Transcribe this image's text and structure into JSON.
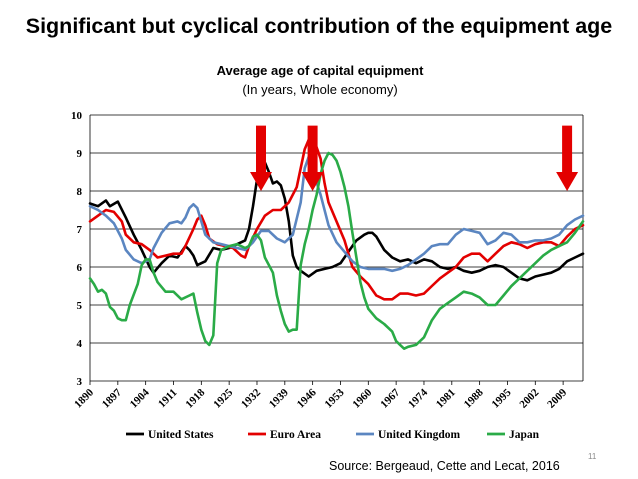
{
  "slide": {
    "title": "Significant but cyclical contribution  of the equipment age",
    "source": "Source: Bergeaud, Cette and Lecat, 2016",
    "page_number": "11"
  },
  "chart_data": {
    "type": "line",
    "title": "Average age of capital equipment",
    "subtitle": "(In years,  Whole economy)",
    "xlabel": "",
    "ylabel": "",
    "xlim": [
      1890,
      2014
    ],
    "ylim": [
      3,
      10
    ],
    "y_ticks": [
      "3",
      "4",
      "5",
      "6",
      "7",
      "8",
      "9",
      "10"
    ],
    "x_ticks": [
      "1890",
      "1897",
      "1904",
      "1911",
      "1918",
      "1925",
      "1932",
      "1939",
      "1946",
      "1953",
      "1960",
      "1967",
      "1974",
      "1981",
      "1988",
      "1995",
      "2002",
      "2009"
    ],
    "grid": "horizontal",
    "legend_position": "bottom",
    "arrow_markers": [
      1933,
      1946,
      2010
    ],
    "arrow_color": "#e30000",
    "series": [
      {
        "name": "United States",
        "color": "#000000",
        "points": [
          [
            1890,
            7.67
          ],
          [
            1892,
            7.6
          ],
          [
            1894,
            7.75
          ],
          [
            1895,
            7.6
          ],
          [
            1897,
            7.72
          ],
          [
            1899,
            7.3
          ],
          [
            1901,
            6.85
          ],
          [
            1903,
            6.45
          ],
          [
            1905,
            6.0
          ],
          [
            1906,
            5.85
          ],
          [
            1908,
            6.1
          ],
          [
            1910,
            6.3
          ],
          [
            1912,
            6.25
          ],
          [
            1914,
            6.55
          ],
          [
            1915,
            6.45
          ],
          [
            1916,
            6.3
          ],
          [
            1917,
            6.05
          ],
          [
            1919,
            6.15
          ],
          [
            1921,
            6.5
          ],
          [
            1923,
            6.45
          ],
          [
            1925,
            6.5
          ],
          [
            1926,
            6.55
          ],
          [
            1928,
            6.65
          ],
          [
            1929,
            6.7
          ],
          [
            1930,
            7.0
          ],
          [
            1931,
            7.6
          ],
          [
            1932,
            8.3
          ],
          [
            1933,
            8.7
          ],
          [
            1934,
            8.75
          ],
          [
            1935,
            8.5
          ],
          [
            1936,
            8.2
          ],
          [
            1937,
            8.25
          ],
          [
            1938,
            8.15
          ],
          [
            1939,
            7.8
          ],
          [
            1940,
            7.2
          ],
          [
            1941,
            6.3
          ],
          [
            1942,
            6.0
          ],
          [
            1943,
            5.9
          ],
          [
            1945,
            5.75
          ],
          [
            1947,
            5.9
          ],
          [
            1949,
            5.95
          ],
          [
            1951,
            6.0
          ],
          [
            1953,
            6.1
          ],
          [
            1955,
            6.4
          ],
          [
            1957,
            6.7
          ],
          [
            1959,
            6.85
          ],
          [
            1960,
            6.9
          ],
          [
            1961,
            6.9
          ],
          [
            1962,
            6.8
          ],
          [
            1964,
            6.45
          ],
          [
            1966,
            6.25
          ],
          [
            1968,
            6.15
          ],
          [
            1970,
            6.2
          ],
          [
            1972,
            6.1
          ],
          [
            1974,
            6.2
          ],
          [
            1976,
            6.15
          ],
          [
            1978,
            6.0
          ],
          [
            1980,
            5.95
          ],
          [
            1982,
            6.0
          ],
          [
            1984,
            5.9
          ],
          [
            1986,
            5.85
          ],
          [
            1988,
            5.9
          ],
          [
            1990,
            6.0
          ],
          [
            1992,
            6.05
          ],
          [
            1994,
            6.0
          ],
          [
            1996,
            5.85
          ],
          [
            1998,
            5.7
          ],
          [
            2000,
            5.65
          ],
          [
            2002,
            5.75
          ],
          [
            2004,
            5.8
          ],
          [
            2006,
            5.85
          ],
          [
            2008,
            5.95
          ],
          [
            2010,
            6.15
          ],
          [
            2012,
            6.25
          ],
          [
            2014,
            6.35
          ]
        ]
      },
      {
        "name": "Euro Area",
        "color": "#e30000",
        "points": [
          [
            1890,
            7.2
          ],
          [
            1892,
            7.35
          ],
          [
            1894,
            7.5
          ],
          [
            1896,
            7.45
          ],
          [
            1898,
            7.2
          ],
          [
            1899,
            6.85
          ],
          [
            1901,
            6.65
          ],
          [
            1903,
            6.6
          ],
          [
            1905,
            6.45
          ],
          [
            1907,
            6.25
          ],
          [
            1909,
            6.3
          ],
          [
            1911,
            6.35
          ],
          [
            1913,
            6.35
          ],
          [
            1914,
            6.55
          ],
          [
            1916,
            7.0
          ],
          [
            1917,
            7.25
          ],
          [
            1918,
            7.35
          ],
          [
            1919,
            7.1
          ],
          [
            1920,
            6.75
          ],
          [
            1922,
            6.6
          ],
          [
            1924,
            6.55
          ],
          [
            1926,
            6.5
          ],
          [
            1928,
            6.3
          ],
          [
            1929,
            6.25
          ],
          [
            1930,
            6.55
          ],
          [
            1932,
            7.0
          ],
          [
            1934,
            7.35
          ],
          [
            1936,
            7.5
          ],
          [
            1938,
            7.5
          ],
          [
            1940,
            7.7
          ],
          [
            1942,
            8.1
          ],
          [
            1943,
            8.6
          ],
          [
            1944,
            9.1
          ],
          [
            1945,
            9.35
          ],
          [
            1946,
            9.3
          ],
          [
            1947,
            9.15
          ],
          [
            1948,
            8.85
          ],
          [
            1949,
            8.2
          ],
          [
            1950,
            7.7
          ],
          [
            1952,
            7.2
          ],
          [
            1954,
            6.7
          ],
          [
            1956,
            6.0
          ],
          [
            1958,
            5.75
          ],
          [
            1960,
            5.55
          ],
          [
            1962,
            5.25
          ],
          [
            1964,
            5.15
          ],
          [
            1966,
            5.15
          ],
          [
            1968,
            5.3
          ],
          [
            1970,
            5.3
          ],
          [
            1972,
            5.25
          ],
          [
            1974,
            5.3
          ],
          [
            1976,
            5.5
          ],
          [
            1978,
            5.7
          ],
          [
            1980,
            5.85
          ],
          [
            1982,
            6.0
          ],
          [
            1984,
            6.25
          ],
          [
            1986,
            6.35
          ],
          [
            1988,
            6.35
          ],
          [
            1990,
            6.15
          ],
          [
            1992,
            6.35
          ],
          [
            1994,
            6.55
          ],
          [
            1996,
            6.65
          ],
          [
            1998,
            6.6
          ],
          [
            2000,
            6.5
          ],
          [
            2002,
            6.6
          ],
          [
            2004,
            6.65
          ],
          [
            2006,
            6.65
          ],
          [
            2008,
            6.55
          ],
          [
            2010,
            6.8
          ],
          [
            2012,
            7.0
          ],
          [
            2014,
            7.1
          ]
        ]
      },
      {
        "name": "United Kingdom",
        "color": "#5b86c1",
        "points": [
          [
            1890,
            7.6
          ],
          [
            1892,
            7.5
          ],
          [
            1894,
            7.35
          ],
          [
            1896,
            7.15
          ],
          [
            1898,
            6.75
          ],
          [
            1899,
            6.45
          ],
          [
            1901,
            6.2
          ],
          [
            1903,
            6.1
          ],
          [
            1905,
            6.2
          ],
          [
            1906,
            6.5
          ],
          [
            1908,
            6.9
          ],
          [
            1910,
            7.15
          ],
          [
            1912,
            7.2
          ],
          [
            1913,
            7.15
          ],
          [
            1914,
            7.3
          ],
          [
            1915,
            7.55
          ],
          [
            1916,
            7.65
          ],
          [
            1917,
            7.55
          ],
          [
            1918,
            7.2
          ],
          [
            1919,
            6.85
          ],
          [
            1921,
            6.65
          ],
          [
            1923,
            6.6
          ],
          [
            1925,
            6.55
          ],
          [
            1927,
            6.5
          ],
          [
            1929,
            6.45
          ],
          [
            1931,
            6.65
          ],
          [
            1933,
            6.95
          ],
          [
            1935,
            6.95
          ],
          [
            1937,
            6.75
          ],
          [
            1939,
            6.65
          ],
          [
            1941,
            6.85
          ],
          [
            1943,
            7.7
          ],
          [
            1944,
            8.6
          ],
          [
            1945,
            8.9
          ],
          [
            1946,
            8.55
          ],
          [
            1948,
            7.9
          ],
          [
            1950,
            7.1
          ],
          [
            1952,
            6.65
          ],
          [
            1954,
            6.4
          ],
          [
            1956,
            6.15
          ],
          [
            1958,
            6.0
          ],
          [
            1960,
            5.95
          ],
          [
            1962,
            5.95
          ],
          [
            1964,
            5.95
          ],
          [
            1966,
            5.9
          ],
          [
            1968,
            5.95
          ],
          [
            1970,
            6.05
          ],
          [
            1972,
            6.2
          ],
          [
            1974,
            6.35
          ],
          [
            1976,
            6.55
          ],
          [
            1978,
            6.6
          ],
          [
            1980,
            6.6
          ],
          [
            1982,
            6.85
          ],
          [
            1984,
            7.0
          ],
          [
            1986,
            6.95
          ],
          [
            1988,
            6.9
          ],
          [
            1990,
            6.6
          ],
          [
            1992,
            6.7
          ],
          [
            1994,
            6.9
          ],
          [
            1996,
            6.85
          ],
          [
            1998,
            6.65
          ],
          [
            2000,
            6.65
          ],
          [
            2002,
            6.7
          ],
          [
            2004,
            6.7
          ],
          [
            2006,
            6.75
          ],
          [
            2008,
            6.85
          ],
          [
            2010,
            7.1
          ],
          [
            2012,
            7.25
          ],
          [
            2014,
            7.35
          ]
        ]
      },
      {
        "name": "Japan",
        "color": "#2aab47",
        "points": [
          [
            1890,
            5.7
          ],
          [
            1891,
            5.55
          ],
          [
            1892,
            5.35
          ],
          [
            1893,
            5.4
          ],
          [
            1894,
            5.3
          ],
          [
            1895,
            4.95
          ],
          [
            1896,
            4.85
          ],
          [
            1897,
            4.65
          ],
          [
            1898,
            4.6
          ],
          [
            1899,
            4.6
          ],
          [
            1900,
            5.0
          ],
          [
            1902,
            5.55
          ],
          [
            1903,
            6.05
          ],
          [
            1904,
            6.2
          ],
          [
            1905,
            6.2
          ],
          [
            1906,
            5.85
          ],
          [
            1907,
            5.6
          ],
          [
            1909,
            5.35
          ],
          [
            1911,
            5.35
          ],
          [
            1913,
            5.15
          ],
          [
            1915,
            5.25
          ],
          [
            1916,
            5.3
          ],
          [
            1917,
            4.8
          ],
          [
            1918,
            4.35
          ],
          [
            1919,
            4.05
          ],
          [
            1920,
            3.95
          ],
          [
            1921,
            4.2
          ],
          [
            1922,
            6.1
          ],
          [
            1923,
            6.45
          ],
          [
            1925,
            6.55
          ],
          [
            1927,
            6.6
          ],
          [
            1929,
            6.5
          ],
          [
            1930,
            6.55
          ],
          [
            1931,
            6.8
          ],
          [
            1932,
            6.85
          ],
          [
            1933,
            6.7
          ],
          [
            1934,
            6.25
          ],
          [
            1936,
            5.85
          ],
          [
            1937,
            5.25
          ],
          [
            1938,
            4.85
          ],
          [
            1939,
            4.5
          ],
          [
            1940,
            4.3
          ],
          [
            1941,
            4.35
          ],
          [
            1942,
            4.35
          ],
          [
            1943,
            6.05
          ],
          [
            1944,
            6.6
          ],
          [
            1945,
            7.0
          ],
          [
            1946,
            7.5
          ],
          [
            1947,
            7.9
          ],
          [
            1948,
            8.45
          ],
          [
            1949,
            8.8
          ],
          [
            1950,
            9.0
          ],
          [
            1951,
            8.95
          ],
          [
            1952,
            8.8
          ],
          [
            1953,
            8.5
          ],
          [
            1954,
            8.1
          ],
          [
            1955,
            7.6
          ],
          [
            1956,
            6.9
          ],
          [
            1958,
            5.6
          ],
          [
            1959,
            5.2
          ],
          [
            1960,
            4.9
          ],
          [
            1962,
            4.65
          ],
          [
            1964,
            4.5
          ],
          [
            1966,
            4.3
          ],
          [
            1967,
            4.05
          ],
          [
            1968,
            3.95
          ],
          [
            1969,
            3.85
          ],
          [
            1970,
            3.9
          ],
          [
            1972,
            3.95
          ],
          [
            1974,
            4.15
          ],
          [
            1976,
            4.6
          ],
          [
            1978,
            4.9
          ],
          [
            1980,
            5.05
          ],
          [
            1982,
            5.2
          ],
          [
            1984,
            5.35
          ],
          [
            1986,
            5.3
          ],
          [
            1988,
            5.2
          ],
          [
            1990,
            5.0
          ],
          [
            1992,
            5.0
          ],
          [
            1994,
            5.25
          ],
          [
            1996,
            5.5
          ],
          [
            1998,
            5.7
          ],
          [
            2000,
            5.9
          ],
          [
            2002,
            6.1
          ],
          [
            2004,
            6.3
          ],
          [
            2006,
            6.45
          ],
          [
            2008,
            6.55
          ],
          [
            2010,
            6.65
          ],
          [
            2012,
            6.9
          ],
          [
            2014,
            7.2
          ]
        ]
      }
    ]
  }
}
